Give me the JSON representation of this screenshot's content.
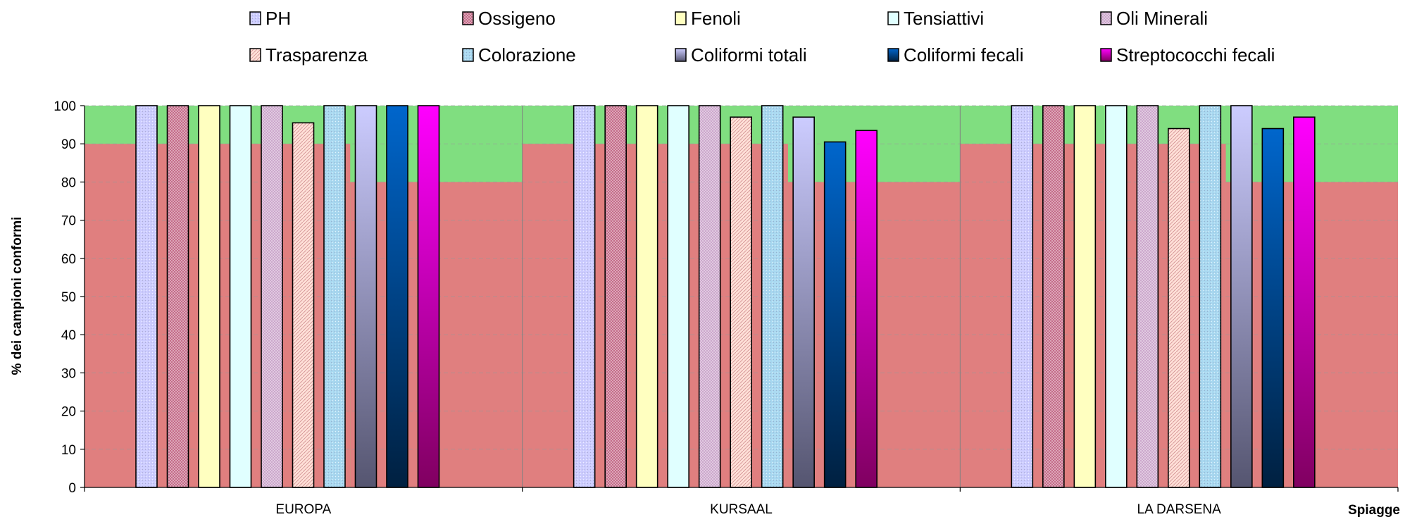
{
  "chart_data": {
    "type": "bar",
    "xlabel": "Spiagge",
    "ylabel": "% dei campioni conformi",
    "ylim": [
      0,
      100
    ],
    "yticks": [
      0,
      10,
      20,
      30,
      40,
      50,
      60,
      70,
      80,
      90,
      100
    ],
    "grid": true,
    "legend_position": "top",
    "categories": [
      "EUROPA",
      "KURSAAL",
      "LA DARSENA"
    ],
    "thresholds": [
      {
        "applies_to": "chemical-physical parameters (first 7 series)",
        "value": 90
      },
      {
        "applies_to": "microbiological parameters (last 3 series)",
        "value": 80
      }
    ],
    "zone_colors": {
      "below": "#E07F7F",
      "above": "#80DE80"
    },
    "series": [
      {
        "name": "PH",
        "values": [
          100,
          100,
          100
        ],
        "color": "#CCCCFF",
        "pattern": "dots"
      },
      {
        "name": "Ossigeno",
        "values": [
          100,
          100,
          100
        ],
        "color": "#C06080",
        "pattern": "grid"
      },
      {
        "name": "Fenoli",
        "values": [
          100,
          100,
          100
        ],
        "color": "#FFFFC0",
        "pattern": "solid"
      },
      {
        "name": "Tensiattivi",
        "values": [
          100,
          100,
          100
        ],
        "color": "#E0FFFF",
        "pattern": "solid"
      },
      {
        "name": "Oli Minerali",
        "values": [
          100,
          100,
          100
        ],
        "color": "#C8A0C8",
        "pattern": "grid"
      },
      {
        "name": "Trasparenza",
        "values": [
          95.5,
          97,
          94
        ],
        "color": "#FFE0D8",
        "pattern": "stripes"
      },
      {
        "name": "Colorazione",
        "values": [
          100,
          100,
          100
        ],
        "color": "#A8D8F0",
        "pattern": "dots"
      },
      {
        "name": "Coliformi totali",
        "values": [
          100,
          97,
          100
        ],
        "color": "#CCCCFF",
        "color2": "#555570",
        "pattern": "gradient"
      },
      {
        "name": "Coliformi fecali",
        "values": [
          100,
          90.5,
          94
        ],
        "color": "#0066CC",
        "color2": "#002040",
        "pattern": "gradient"
      },
      {
        "name": "Streptococchi fecali",
        "values": [
          100,
          93.5,
          97
        ],
        "color": "#FF00FF",
        "color2": "#800060",
        "pattern": "gradient"
      }
    ]
  }
}
